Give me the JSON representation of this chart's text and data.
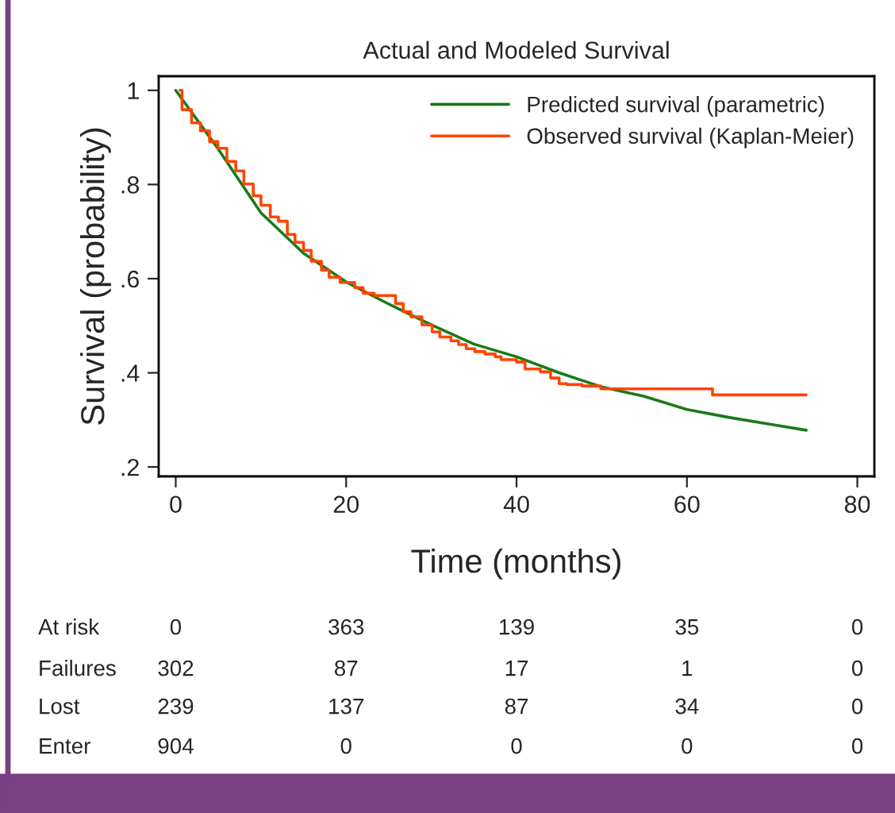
{
  "chart_data": {
    "type": "line",
    "title": "Actual and Modeled Survival",
    "xlabel": "Time (months)",
    "ylabel": "Survival (probability)",
    "xlim": [
      -2,
      82
    ],
    "xticks": [
      0,
      20,
      40,
      60,
      80
    ],
    "ylim": [
      0.18,
      1.03
    ],
    "yticks": [
      {
        "value": 0.2,
        "label": ".2"
      },
      {
        "value": 0.4,
        "label": ".4"
      },
      {
        "value": 0.6,
        "label": ".6"
      },
      {
        "value": 0.8,
        "label": ".8"
      },
      {
        "value": 1,
        "label": "1"
      }
    ],
    "grid": false,
    "legend": "top right",
    "series": [
      {
        "name": "Predicted survival (parametric)",
        "color": "#1a7a1a",
        "x": [
          0,
          5,
          10,
          15,
          20,
          25,
          30,
          35,
          40,
          45,
          50,
          55,
          60,
          65,
          70,
          74
        ],
        "values": [
          1,
          0.875,
          0.74,
          0.654,
          0.593,
          0.546,
          0.502,
          0.461,
          0.434,
          0.4,
          0.37,
          0.35,
          0.322,
          0.305,
          0.29,
          0.278
        ]
      },
      {
        "name": "Observed survival (Kaplan-Meier)",
        "type": "step",
        "color": "#ff4500",
        "x": [
          0.5,
          0.74,
          1.86,
          2.9,
          3.96,
          4.95,
          6,
          7.05,
          8,
          9.1,
          10,
          11.1,
          12.06,
          13.1,
          14,
          15,
          15.9,
          17.1,
          18,
          19.3,
          21,
          22,
          23.3,
          25.8,
          26.7,
          27.6,
          28.9,
          30.1,
          31,
          32.3,
          33.2,
          34.1,
          35.1,
          36.3,
          37.5,
          38.2,
          40,
          41,
          42.8,
          44,
          45,
          45.9,
          47.7,
          49.9,
          63,
          74
        ],
        "values": [
          1,
          0.959,
          0.931,
          0.914,
          0.891,
          0.877,
          0.849,
          0.829,
          0.801,
          0.776,
          0.756,
          0.731,
          0.722,
          0.694,
          0.677,
          0.66,
          0.637,
          0.618,
          0.603,
          0.592,
          0.581,
          0.569,
          0.564,
          0.547,
          0.53,
          0.519,
          0.502,
          0.487,
          0.476,
          0.468,
          0.46,
          0.451,
          0.445,
          0.44,
          0.434,
          0.428,
          0.423,
          0.408,
          0.402,
          0.389,
          0.377,
          0.375,
          0.372,
          0.366,
          0.353,
          0.353
        ]
      }
    ],
    "annotations": [
      "At risk",
      "0",
      "363",
      "139",
      "35",
      "0",
      "Failures",
      "302",
      "87",
      "17",
      "1",
      "0",
      "Lost",
      "239",
      "137",
      "87",
      "34",
      "0",
      "Enter",
      "904",
      "0",
      "0",
      "0",
      "0"
    ]
  }
}
